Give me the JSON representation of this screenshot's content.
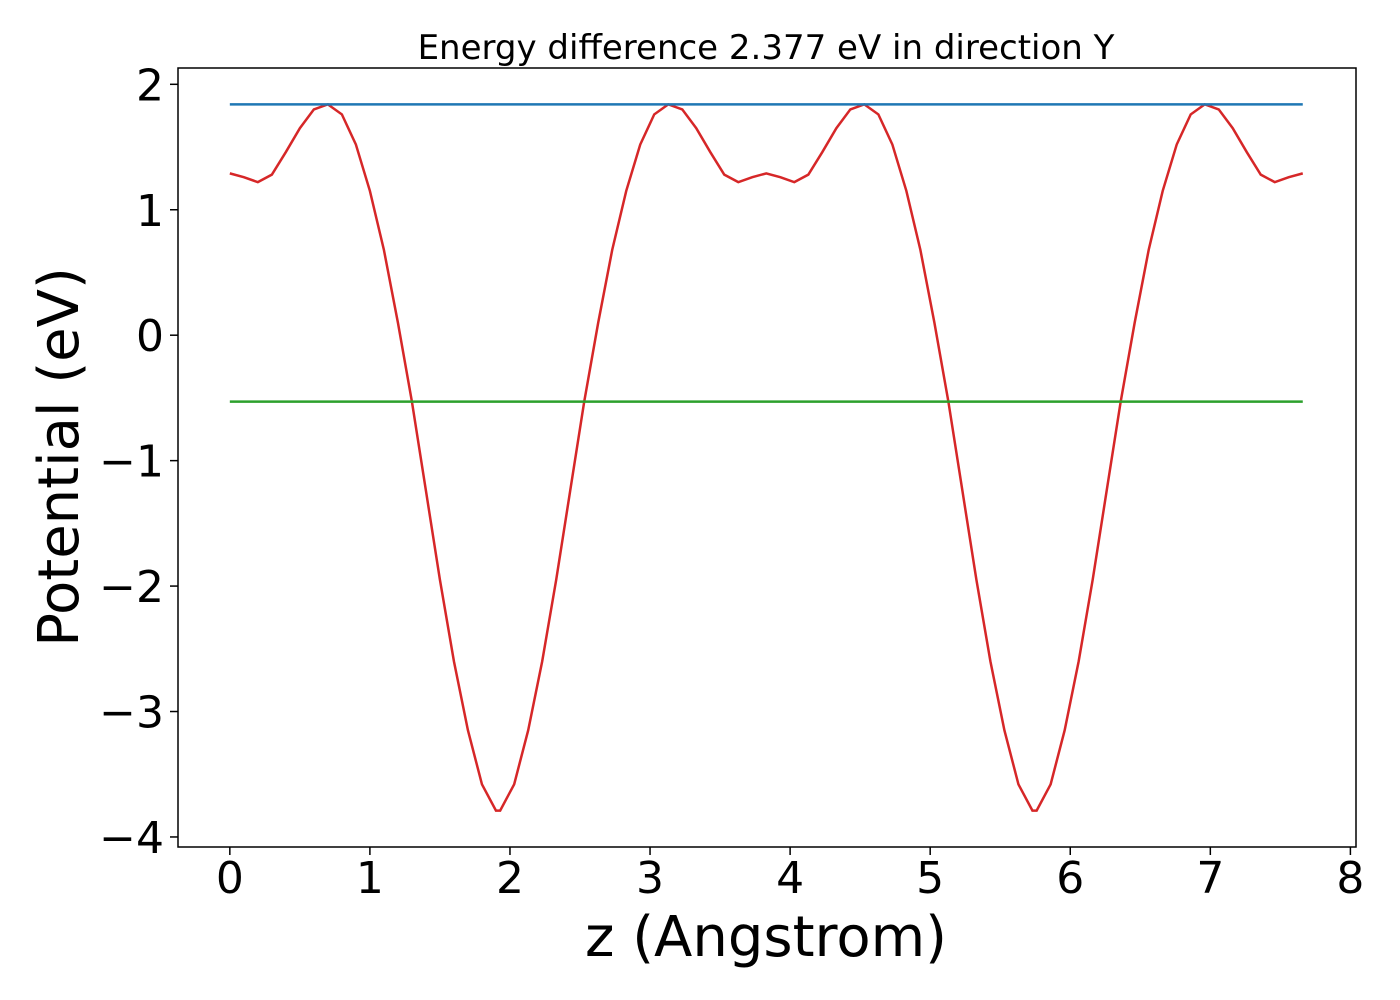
{
  "chart_data": {
    "type": "line",
    "title": "Energy difference 2.377 eV in direction Y",
    "x_label": "z (Angstrom)",
    "y_label": "Potential (eV)",
    "series": [
      {
        "color": "#d62728",
        "x": [
          0,
          0.1,
          0.2,
          0.3,
          0.4,
          0.5,
          0.6,
          0.7,
          0.8,
          0.9,
          1.0,
          1.1,
          1.2,
          1.3,
          1.4,
          1.5,
          1.6,
          1.7,
          1.8,
          1.9,
          1.93,
          2.03,
          2.13,
          2.23,
          2.33,
          2.43,
          2.53,
          2.63,
          2.73,
          2.83,
          2.93,
          3.03,
          3.13,
          3.23,
          3.33,
          3.43,
          3.53,
          3.63,
          3.73,
          3.83,
          3.93,
          4.03,
          4.13,
          4.23,
          4.33,
          4.43,
          4.53,
          4.63,
          4.73,
          4.83,
          4.93,
          5.03,
          5.13,
          5.23,
          5.33,
          5.43,
          5.53,
          5.63,
          5.73,
          5.76,
          5.86,
          5.96,
          6.06,
          6.16,
          6.26,
          6.36,
          6.46,
          6.56,
          6.66,
          6.76,
          6.86,
          6.96,
          7.06,
          7.16,
          7.26,
          7.36,
          7.46,
          7.56,
          7.66
        ],
        "values": [
          1.29,
          1.26,
          1.22,
          1.28,
          1.46,
          1.65,
          1.8,
          1.84,
          1.76,
          1.52,
          1.15,
          0.68,
          0.1,
          -0.53,
          -1.24,
          -1.95,
          -2.6,
          -3.15,
          -3.58,
          -3.79,
          -3.79,
          -3.58,
          -3.15,
          -2.6,
          -1.95,
          -1.24,
          -0.53,
          0.1,
          0.68,
          1.15,
          1.52,
          1.76,
          1.84,
          1.8,
          1.65,
          1.46,
          1.28,
          1.22,
          1.26,
          1.29,
          1.26,
          1.22,
          1.28,
          1.46,
          1.65,
          1.8,
          1.84,
          1.76,
          1.52,
          1.15,
          0.68,
          0.1,
          -0.53,
          -1.24,
          -1.95,
          -2.6,
          -3.15,
          -3.58,
          -3.79,
          -3.79,
          -3.58,
          -3.15,
          -2.6,
          -1.95,
          -1.24,
          -0.53,
          0.1,
          0.68,
          1.15,
          1.52,
          1.76,
          1.84,
          1.8,
          1.65,
          1.46,
          1.28,
          1.22,
          1.26,
          1.29
        ]
      },
      {
        "color": "#1f77b4",
        "x": [
          0,
          7.66
        ],
        "values": [
          1.84,
          1.84
        ]
      },
      {
        "color": "#2ca02c",
        "x": [
          0,
          7.66
        ],
        "values": [
          -0.53,
          -0.53
        ]
      }
    ],
    "xlim": [
      -0.37,
      8.04
    ],
    "ylim": [
      -4.08,
      2.13
    ],
    "xticks": [
      0,
      1,
      2,
      3,
      4,
      5,
      6,
      7,
      8
    ],
    "yticks": [
      {
        "value": -4,
        "label": "−4"
      },
      {
        "value": -3,
        "label": "−3"
      },
      {
        "value": -2,
        "label": "−2"
      },
      {
        "value": -1,
        "label": "−1"
      },
      0,
      1,
      2
    ]
  }
}
